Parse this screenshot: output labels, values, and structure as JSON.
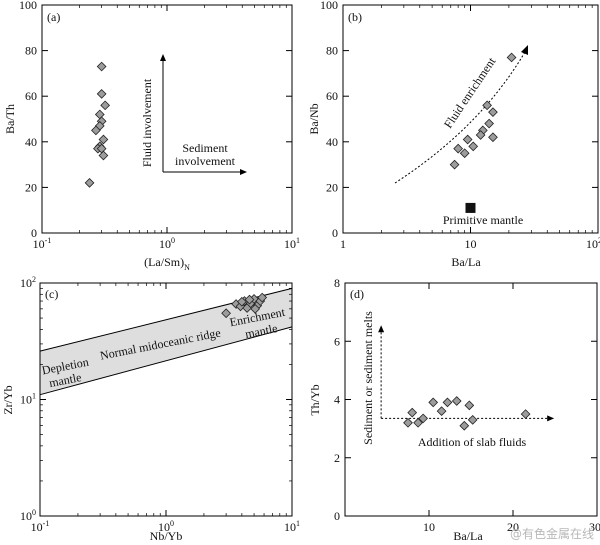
{
  "watermark": "@有色金属在线",
  "chart_data": [
    {
      "panel": "(a)",
      "type": "scatter",
      "xlabel": "(La/Sm)",
      "xlabel_sub": "N",
      "ylabel": "Ba/Th",
      "xscale": "log",
      "xlim": [
        0.1,
        10
      ],
      "ylim": [
        0,
        100
      ],
      "xticks": [
        "10",
        "10",
        "10"
      ],
      "xtick_exps": [
        "-1",
        "0",
        "1"
      ],
      "yticks": [
        "0",
        "20",
        "40",
        "60",
        "80",
        "100"
      ],
      "points": [
        {
          "x": 0.3,
          "y": 73
        },
        {
          "x": 0.3,
          "y": 61
        },
        {
          "x": 0.32,
          "y": 56
        },
        {
          "x": 0.29,
          "y": 52
        },
        {
          "x": 0.3,
          "y": 49
        },
        {
          "x": 0.29,
          "y": 47
        },
        {
          "x": 0.27,
          "y": 45
        },
        {
          "x": 0.31,
          "y": 41
        },
        {
          "x": 0.29,
          "y": 38
        },
        {
          "x": 0.28,
          "y": 37
        },
        {
          "x": 0.3,
          "y": 37
        },
        {
          "x": 0.31,
          "y": 34
        },
        {
          "x": 0.24,
          "y": 22
        }
      ],
      "annotations": [
        "Fluid involvement",
        "Sediment",
        "involvement"
      ]
    },
    {
      "panel": "(b)",
      "type": "scatter",
      "xlabel": "Ba/La",
      "ylabel": "Ba/Nb",
      "xscale": "log",
      "xlim": [
        1,
        100
      ],
      "ylim": [
        0,
        100
      ],
      "xticks": [
        "1",
        "10",
        "10"
      ],
      "xtick_exps": [
        "",
        "",
        "2"
      ],
      "yticks": [
        "0",
        "20",
        "40",
        "60",
        "80",
        "100"
      ],
      "points": [
        {
          "x": 21,
          "y": 77
        },
        {
          "x": 13.5,
          "y": 56
        },
        {
          "x": 15,
          "y": 53
        },
        {
          "x": 14,
          "y": 48
        },
        {
          "x": 12.5,
          "y": 45
        },
        {
          "x": 12,
          "y": 43
        },
        {
          "x": 9.5,
          "y": 41
        },
        {
          "x": 15,
          "y": 42
        },
        {
          "x": 10.5,
          "y": 38
        },
        {
          "x": 8,
          "y": 37
        },
        {
          "x": 9,
          "y": 35
        },
        {
          "x": 7.5,
          "y": 30
        }
      ],
      "reference": {
        "label": "Primitive mantle",
        "x": 10,
        "y": 11
      },
      "annotations": [
        "Fluid enrichment"
      ]
    },
    {
      "panel": "(c)",
      "type": "scatter",
      "xlabel": "Nb/Yb",
      "ylabel": "Zr/Yb",
      "xscale": "log",
      "yscale": "log",
      "xlim": [
        0.1,
        10
      ],
      "ylim": [
        1,
        100
      ],
      "xticks": [
        "10",
        "10",
        "10"
      ],
      "xtick_exps": [
        "-1",
        "0",
        "1"
      ],
      "yticks": [
        "10",
        "10",
        "10"
      ],
      "ytick_exps": [
        "0",
        "1",
        "2"
      ],
      "points": [
        {
          "x": 3.0,
          "y": 55
        },
        {
          "x": 3.6,
          "y": 66
        },
        {
          "x": 3.9,
          "y": 63
        },
        {
          "x": 4.2,
          "y": 70
        },
        {
          "x": 4.4,
          "y": 61
        },
        {
          "x": 4.7,
          "y": 67
        },
        {
          "x": 5.0,
          "y": 73
        },
        {
          "x": 5.3,
          "y": 64
        },
        {
          "x": 5.6,
          "y": 70
        },
        {
          "x": 4.0,
          "y": 69
        },
        {
          "x": 5.8,
          "y": 75
        },
        {
          "x": 5.1,
          "y": 60
        },
        {
          "x": 4.6,
          "y": 72
        }
      ],
      "band": {
        "x": [
          0.1,
          10
        ],
        "upper": [
          26,
          90
        ],
        "lower": [
          11,
          42
        ]
      },
      "annotations": [
        "Depletion",
        "mantle",
        "Normal midoceanic ridge",
        "Enrichment",
        "mantle"
      ]
    },
    {
      "panel": "(d)",
      "type": "scatter",
      "xlabel": "Ba/La",
      "ylabel": "Th/Yb",
      "xlim": [
        0,
        30
      ],
      "ylim": [
        0,
        8
      ],
      "xticks": [
        "10",
        "20",
        "30"
      ],
      "yticks": [
        "0",
        "2",
        "4",
        "6",
        "8"
      ],
      "points": [
        {
          "x": 7.5,
          "y": 3.2
        },
        {
          "x": 8.0,
          "y": 3.55
        },
        {
          "x": 8.7,
          "y": 3.2
        },
        {
          "x": 9.3,
          "y": 3.35
        },
        {
          "x": 10.5,
          "y": 3.9
        },
        {
          "x": 11.5,
          "y": 3.6
        },
        {
          "x": 12.2,
          "y": 3.9
        },
        {
          "x": 13.3,
          "y": 3.95
        },
        {
          "x": 14.2,
          "y": 3.1
        },
        {
          "x": 14.8,
          "y": 3.8
        },
        {
          "x": 15.2,
          "y": 3.3
        },
        {
          "x": 21.5,
          "y": 3.5
        }
      ],
      "annotations": [
        "Sediment or sediment melts",
        "Addition of slab fluids"
      ]
    }
  ]
}
